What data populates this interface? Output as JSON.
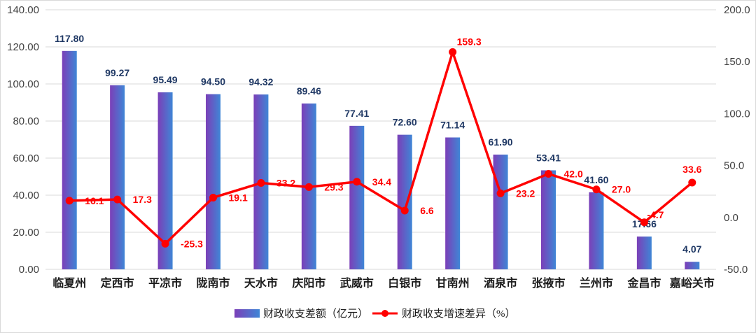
{
  "chart_data": {
    "type": "bar",
    "categories": [
      "临夏州",
      "定西市",
      "平凉市",
      "陇南市",
      "天水市",
      "庆阳市",
      "武威市",
      "白银市",
      "甘南州",
      "酒泉市",
      "张掖市",
      "兰州市",
      "金昌市",
      "嘉峪关市"
    ],
    "series": [
      {
        "name": "财政收支差额（亿元）",
        "type": "bar",
        "axis": "left",
        "values": [
          117.8,
          99.27,
          95.49,
          94.5,
          94.32,
          89.46,
          77.41,
          72.6,
          71.14,
          61.9,
          53.41,
          41.6,
          17.66,
          4.07
        ],
        "labels": [
          "117.80",
          "99.27",
          "95.49",
          "94.50",
          "94.32",
          "89.46",
          "77.41",
          "72.60",
          "71.14",
          "61.90",
          "53.41",
          "41.60",
          "17.66",
          "4.07"
        ],
        "color": "#4f6fcf"
      },
      {
        "name": "财政收支增速差异（%）",
        "type": "line",
        "axis": "right",
        "values": [
          16.1,
          17.3,
          -25.3,
          19.1,
          33.2,
          29.3,
          34.4,
          6.6,
          159.3,
          23.2,
          42.0,
          27.0,
          -4.7,
          33.6
        ],
        "labels": [
          "16.1",
          "17.3",
          "-25.3",
          "19.1",
          "33.2",
          "29.3",
          "34.4",
          "6.6",
          "159.3",
          "23.2",
          "42.0",
          "27.0",
          "-4.7",
          "33.6"
        ],
        "color": "#ff0000"
      }
    ],
    "y_left": {
      "ylim": [
        0,
        140
      ],
      "ticks": [
        "0.00",
        "20.00",
        "40.00",
        "60.00",
        "80.00",
        "100.00",
        "120.00",
        "140.00"
      ]
    },
    "y_right": {
      "ylim": [
        -50,
        200
      ],
      "ticks": [
        "-50.0",
        "0.0",
        "50.0",
        "100.0",
        "150.0",
        "200.0"
      ]
    },
    "grid": true,
    "legend": "bottom"
  }
}
